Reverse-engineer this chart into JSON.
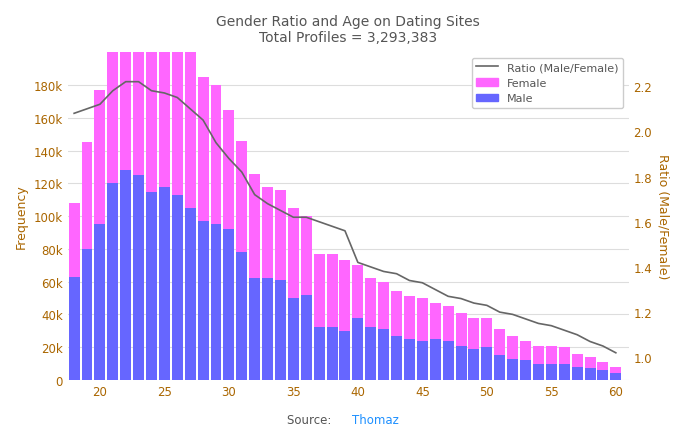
{
  "title_line1": "Gender Ratio and Age on Dating Sites",
  "title_line2": "Total Profiles = 3,293,383",
  "source_text": "Source: ",
  "source_link": "Thomaz",
  "ylabel_left": "Frequency",
  "ylabel_right": "Ratio (Male/Female)",
  "bar_color_female": "#FF66FF",
  "bar_color_male": "#6666FF",
  "line_color": "#666666",
  "ages": [
    18,
    19,
    20,
    21,
    22,
    23,
    24,
    25,
    26,
    27,
    28,
    29,
    30,
    31,
    32,
    33,
    34,
    35,
    36,
    37,
    38,
    39,
    40,
    41,
    42,
    43,
    44,
    45,
    46,
    47,
    48,
    49,
    50,
    51,
    52,
    53,
    54,
    55,
    56,
    57,
    58,
    59,
    60
  ],
  "female": [
    45000,
    65000,
    82000,
    105000,
    115000,
    120000,
    110000,
    108000,
    102000,
    95000,
    88000,
    85000,
    73000,
    68000,
    64000,
    56000,
    55000,
    55000,
    48000,
    45000,
    45000,
    43000,
    32000,
    30000,
    29000,
    27000,
    26000,
    26000,
    22000,
    21000,
    20000,
    19000,
    18000,
    16000,
    14000,
    12000,
    11000,
    11000,
    10000,
    8000,
    7000,
    5000,
    4000
  ],
  "male": [
    63000,
    80000,
    95000,
    120000,
    128000,
    125000,
    115000,
    118000,
    113000,
    105000,
    97000,
    95000,
    92000,
    78000,
    62000,
    62000,
    61000,
    50000,
    52000,
    32000,
    32000,
    30000,
    38000,
    32000,
    31000,
    27000,
    25000,
    24000,
    25000,
    24000,
    21000,
    19000,
    20000,
    15000,
    13000,
    12000,
    10000,
    10000,
    10000,
    8000,
    7000,
    6000,
    4000
  ],
  "ratio": [
    2.08,
    2.1,
    2.12,
    2.18,
    2.22,
    2.22,
    2.18,
    2.17,
    2.15,
    2.1,
    2.05,
    1.95,
    1.88,
    1.82,
    1.72,
    1.68,
    1.65,
    1.62,
    1.62,
    1.6,
    1.58,
    1.56,
    1.42,
    1.4,
    1.38,
    1.37,
    1.34,
    1.33,
    1.3,
    1.27,
    1.26,
    1.24,
    1.23,
    1.2,
    1.19,
    1.17,
    1.15,
    1.14,
    1.12,
    1.1,
    1.07,
    1.05,
    1.02
  ],
  "ylim_left": [
    0,
    200000
  ],
  "ylim_right": [
    0.9,
    2.35
  ],
  "yticks_left": [
    0,
    20000,
    40000,
    60000,
    80000,
    100000,
    120000,
    140000,
    160000,
    180000
  ],
  "ytick_labels_left": [
    "0",
    "20k",
    "40k",
    "60k",
    "80k",
    "100k",
    "120k",
    "140k",
    "160k",
    "180k"
  ],
  "yticks_right": [
    1.0,
    1.2,
    1.4,
    1.6,
    1.8,
    2.0,
    2.2
  ],
  "xticks": [
    20,
    25,
    30,
    35,
    40,
    45,
    50,
    55,
    60
  ],
  "bg_color": "#FFFFFF",
  "grid_color": "#DDDDDD",
  "title_color": "#555555",
  "tick_color": "#AA6600",
  "label_color": "#AA6600",
  "source_color_text": "#555555",
  "source_color_link": "#1E90FF",
  "legend_line_label": "Ratio (Male/Female)",
  "legend_female_label": "Female",
  "legend_male_label": "Male",
  "figwidth": 6.84,
  "figheight": 4.31,
  "dpi": 100
}
